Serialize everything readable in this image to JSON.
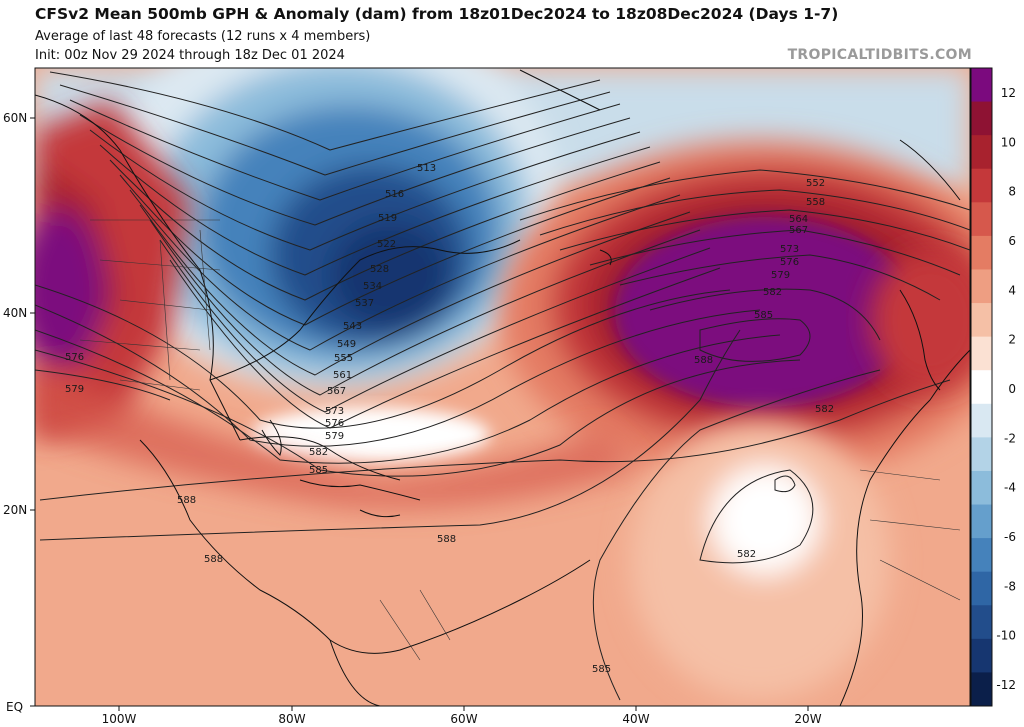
{
  "header": {
    "title": "CFSv2 Mean 500mb GPH & Anomaly (dam) from 18z01Dec2024 to 18z08Dec2024 (Days 1-7)",
    "subtitle1": "Average of last 48 forecasts (12 runs x 4 members)",
    "subtitle2": "Init: 00z Nov 29 2024 through 18z Dec 01 2024"
  },
  "watermark": "TROPICALTIDBITS.COM",
  "axes": {
    "lat_labels": [
      "60N",
      "40N",
      "20N",
      "EQ"
    ],
    "lon_labels": [
      "100W",
      "80W",
      "60W",
      "40W",
      "20W"
    ]
  },
  "colorbar": {
    "ticks": [
      "12",
      "10",
      "8",
      "6",
      "4",
      "2",
      "0",
      "-2",
      "-4",
      "-6",
      "-8",
      "-10",
      "-12"
    ],
    "colors": [
      "#7b0a7e",
      "#8e1233",
      "#a8222e",
      "#c4383a",
      "#d6584c",
      "#e47c63",
      "#ee9e82",
      "#f5c0a6",
      "#fbe1d3",
      "#ffffff",
      "#d9e8f2",
      "#b3d3e7",
      "#8cbcdb",
      "#659fcc",
      "#4582bb",
      "#2f66a5",
      "#224d8b",
      "#163670",
      "#0b1f4a"
    ]
  },
  "contour_labels": [
    "513",
    "516",
    "519",
    "522",
    "525",
    "528",
    "531",
    "534",
    "537",
    "540",
    "543",
    "546",
    "549",
    "552",
    "555",
    "558",
    "561",
    "564",
    "567",
    "570",
    "573",
    "576",
    "579",
    "582",
    "585",
    "588"
  ],
  "map_contour_labels": {
    "west_576": "576",
    "west_579": "579",
    "gulf_588": "588",
    "carib_588": "588",
    "central_588": "588",
    "atl_588": "588",
    "ridge_552": "552",
    "ridge_558": "558",
    "ridge_564": "564",
    "ridge_567": "567",
    "ridge_573": "573",
    "ridge_576": "576",
    "ridge_579": "579",
    "ridge_582": "582",
    "ridge_585": "585",
    "east_582": "582",
    "tr_582": "582",
    "tr_585": "585",
    "se_582": "582",
    "se_585": "585",
    "tr_513": "513",
    "tr_516": "516",
    "tr_519": "519",
    "tr_522": "522",
    "tr_528": "528",
    "tr_534": "534",
    "tr_537": "537",
    "tr_543": "543",
    "tr_549": "549",
    "tr_555": "555",
    "tr_561": "561",
    "tr_567": "567",
    "tr_573": "573",
    "tr_576": "576",
    "tr_579": "579"
  }
}
